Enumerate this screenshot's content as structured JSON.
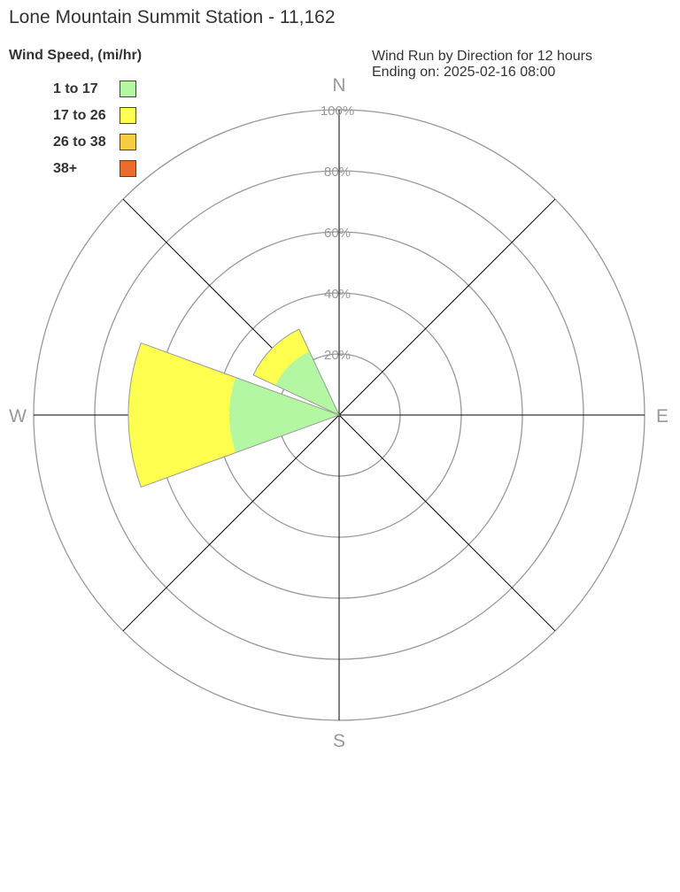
{
  "title": "Lone Mountain Summit Station - 11,162",
  "legend_title": "Wind Speed, (mi/hr)",
  "subtitle_line1": "Wind Run by Direction for 12 hours",
  "subtitle_line2": "Ending on: 2025-02-16 08:00",
  "chart_data": {
    "type": "polar-stacked-bar",
    "directions": [
      "N",
      "NE",
      "E",
      "SE",
      "S",
      "SW",
      "W",
      "NW"
    ],
    "compass_labels": [
      "N",
      "E",
      "S",
      "W"
    ],
    "radial_ticks": [
      "20%",
      "40%",
      "60%",
      "80%",
      "100%"
    ],
    "radial_range": [
      0,
      100
    ],
    "legend_position": "top-left",
    "series": [
      {
        "name": "1 to 17",
        "color": "#b3f7a3",
        "values": [
          0,
          0,
          0,
          0,
          0,
          0,
          36,
          23
        ]
      },
      {
        "name": "17 to 26",
        "color": "#ffff4f",
        "values": [
          0,
          0,
          0,
          0,
          0,
          0,
          33,
          8
        ]
      },
      {
        "name": "26 to 38",
        "color": "#f7cc45",
        "values": [
          0,
          0,
          0,
          0,
          0,
          0,
          0,
          0
        ]
      },
      {
        "name": "38+",
        "color": "#ec6b2d",
        "values": [
          0,
          0,
          0,
          0,
          0,
          0,
          0,
          0
        ]
      }
    ]
  }
}
